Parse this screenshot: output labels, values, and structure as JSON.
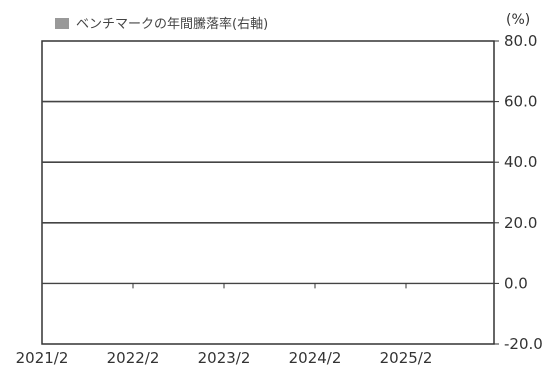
{
  "chart_data": {
    "type": "bar",
    "legend": {
      "entries": [
        {
          "name": "ベンチマークの年間騰落率(右軸)",
          "color": "#999999"
        }
      ],
      "placement": "top-left"
    },
    "y_unit": "(%)",
    "y_axis_side": "right",
    "ylim": [
      -20,
      80
    ],
    "yticks": [
      -20,
      0,
      20,
      40,
      60,
      80
    ],
    "ytick_labels": [
      "-20.0",
      "0.0",
      "20.0",
      "40.0",
      "60.0",
      "80.0"
    ],
    "x_tick_labels": [
      "2021/2",
      "2022/2",
      "2023/2",
      "2024/2",
      "2025/2"
    ],
    "grid": {
      "horizontal": true,
      "values": [
        20,
        40,
        60
      ]
    },
    "series": [
      {
        "name": "ベンチマークの年間騰落率(右軸)",
        "values": []
      }
    ]
  }
}
